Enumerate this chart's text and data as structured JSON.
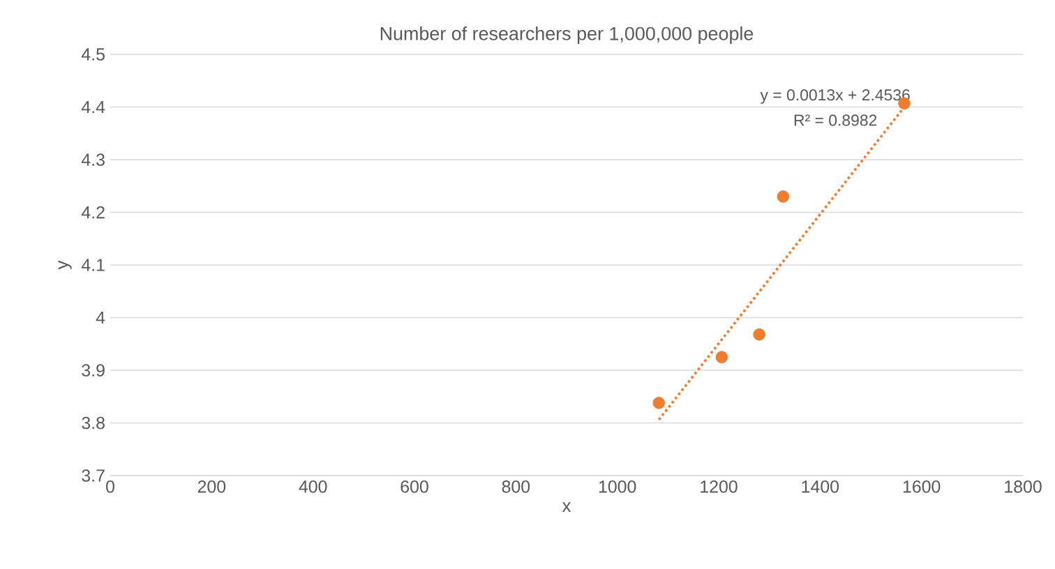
{
  "chart_data": {
    "type": "scatter",
    "title": "Number of researchers per 1,000,000 people",
    "xlabel": "x",
    "ylabel": "y",
    "xlim": [
      0,
      1800
    ],
    "xticks": [
      0,
      200,
      400,
      600,
      800,
      1000,
      1200,
      1400,
      1600,
      1800
    ],
    "ylim": [
      3.7,
      4.5
    ],
    "yticks": [
      {
        "value": 3.7,
        "label": "3.7"
      },
      {
        "value": 3.8,
        "label": "3.8"
      },
      {
        "value": 3.9,
        "label": "3.9"
      },
      {
        "value": 4.0,
        "label": "4"
      },
      {
        "value": 4.1,
        "label": "4.1"
      },
      {
        "value": 4.2,
        "label": "4.2"
      },
      {
        "value": 4.3,
        "label": "4.3"
      },
      {
        "value": 4.4,
        "label": "4.4"
      },
      {
        "value": 4.5,
        "label": "4.5"
      }
    ],
    "grid": "y",
    "series": [
      {
        "color": "#ed7d31",
        "marker": "circle",
        "x": [
          1082,
          1206,
          1280,
          1327,
          1566
        ],
        "values": [
          3.838,
          3.925,
          3.968,
          4.23,
          4.407
        ]
      },
      {
        "type": "line",
        "color": "#ed7d31",
        "line_style": "dotted",
        "marker": "none",
        "x": [
          1082,
          1566
        ],
        "values": [
          3.806,
          4.4
        ]
      }
    ],
    "annotations": [
      "y = 0.0013x + 2.4536",
      "R² = 0.8982"
    ]
  }
}
